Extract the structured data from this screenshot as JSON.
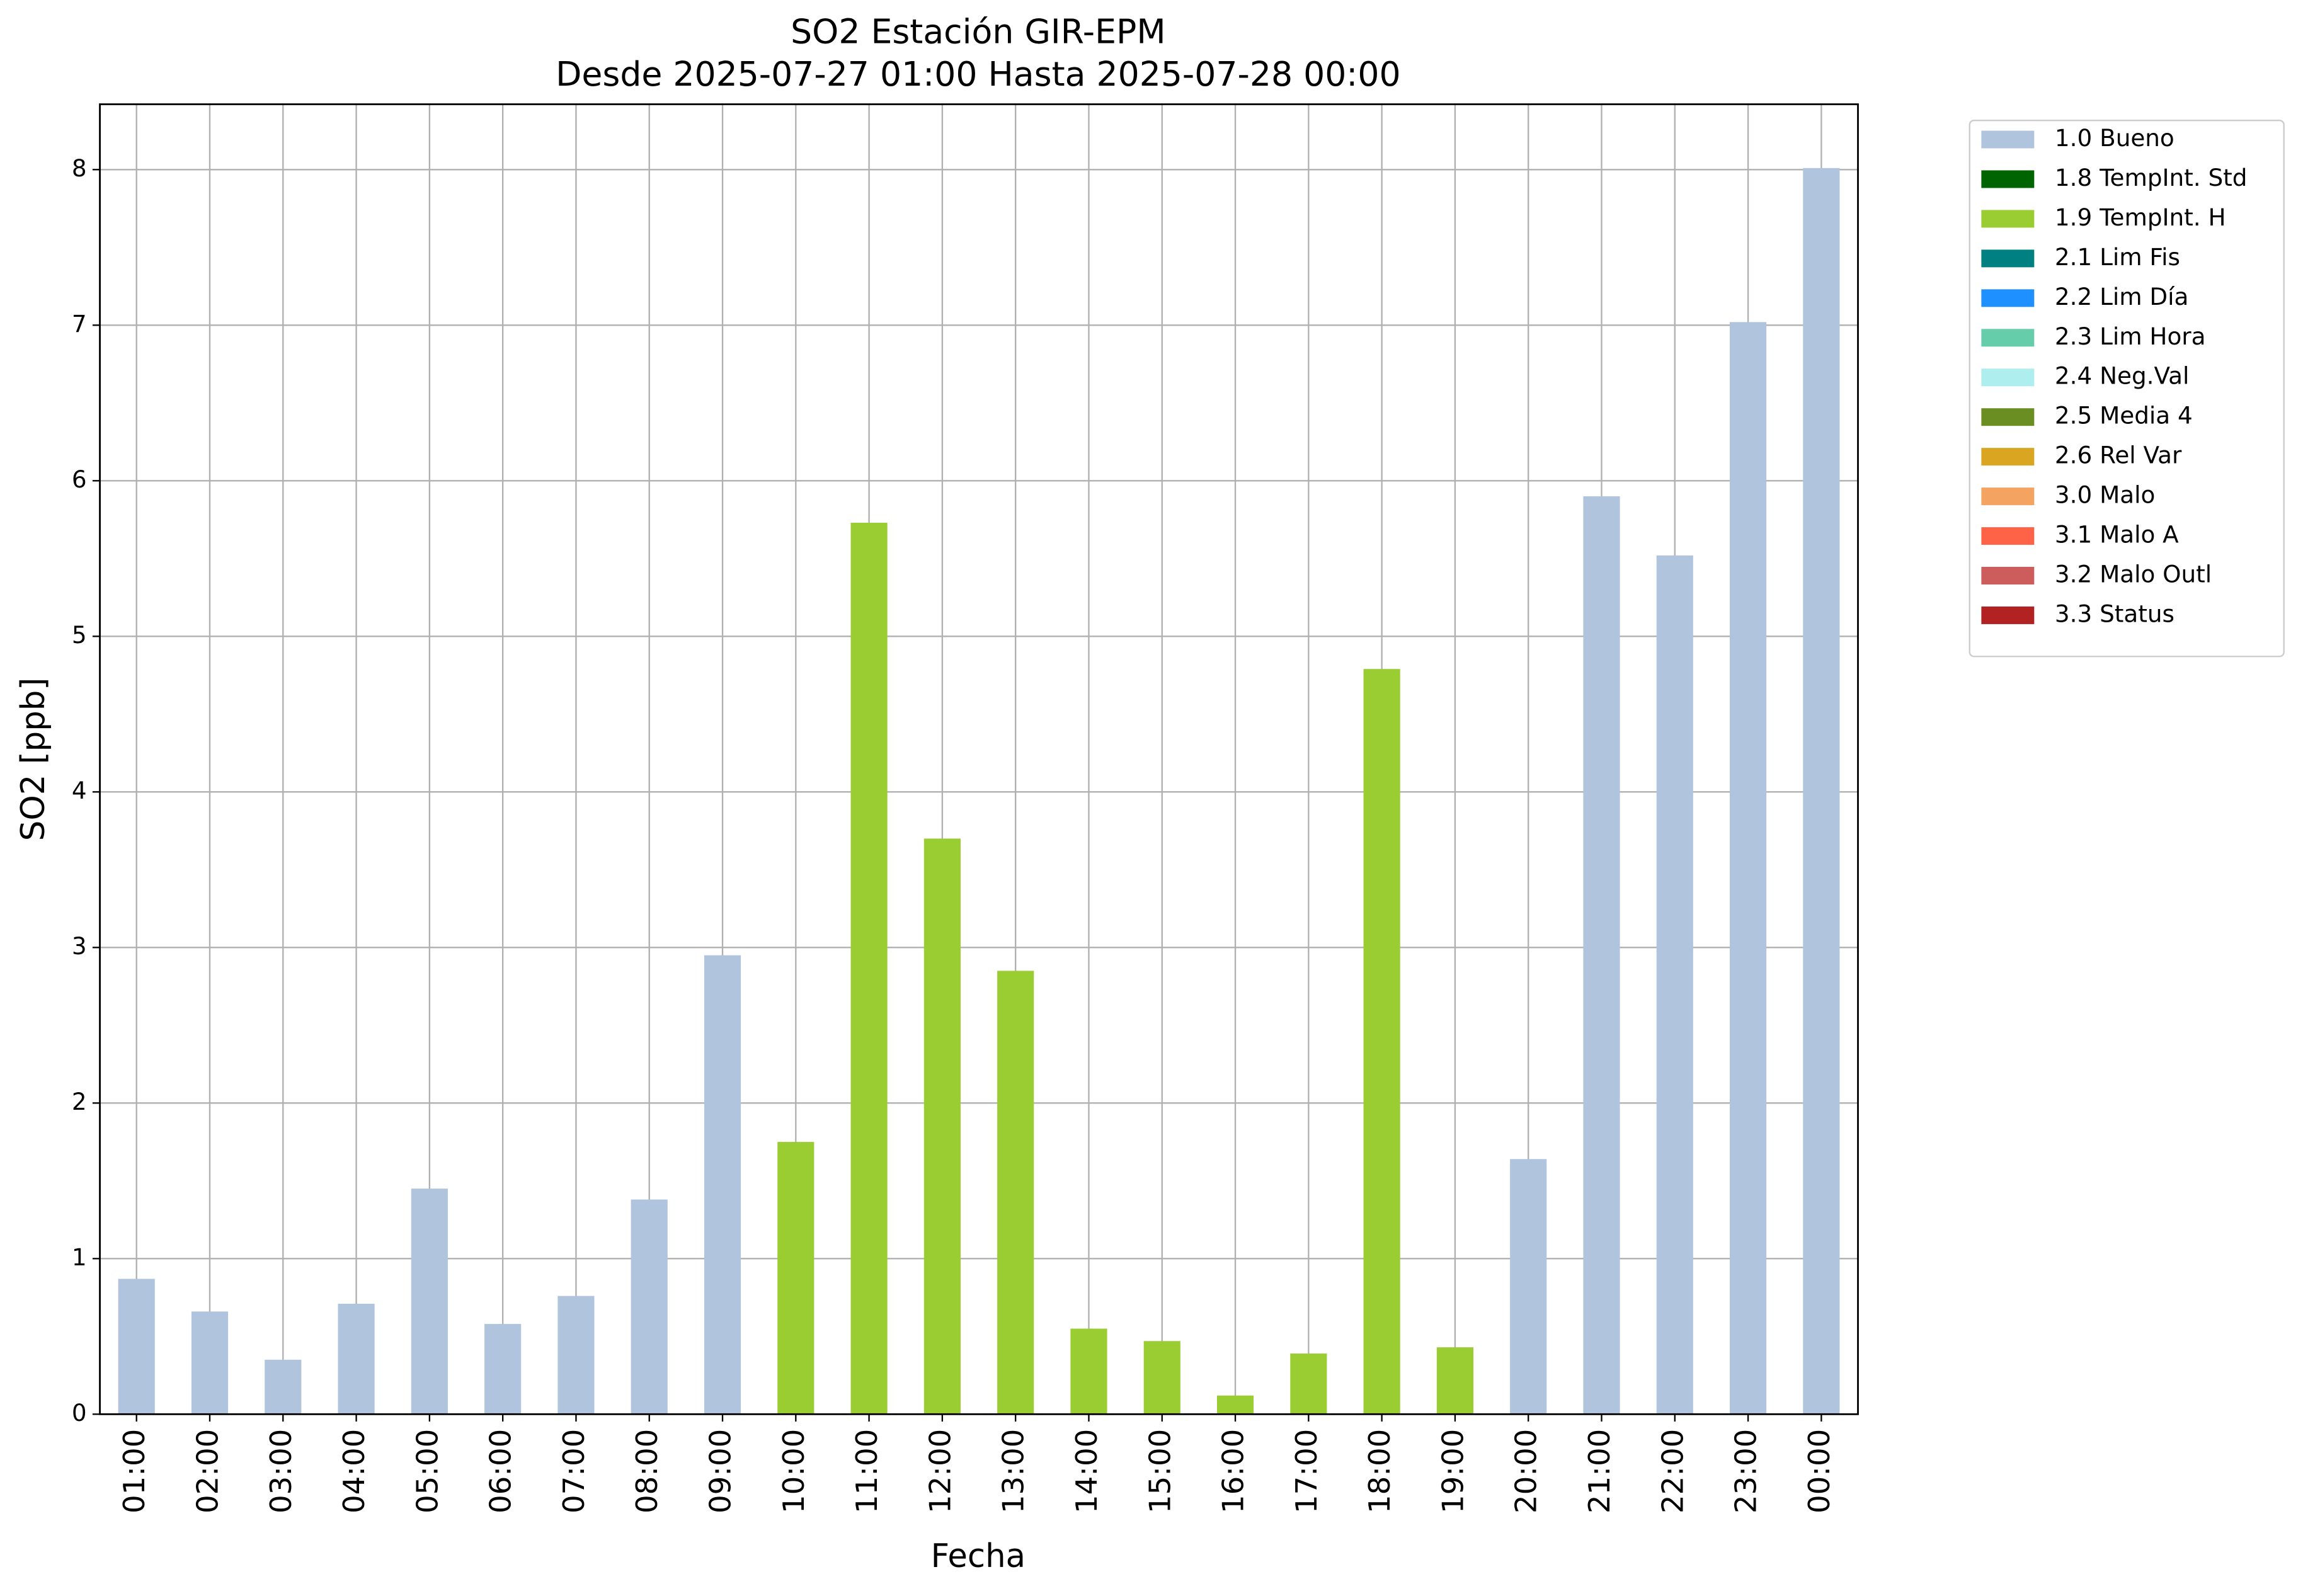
{
  "chart_data": {
    "type": "stacked_bar",
    "title": "SO2 Estación GIR-EPM",
    "subtitle": "Desde 2025-07-27 01:00 Hasta 2025-07-28 00:00",
    "x_label": "Fecha",
    "y_label": "SO2 [ppb]",
    "categories": [
      "01:00",
      "02:00",
      "03:00",
      "04:00",
      "05:00",
      "06:00",
      "07:00",
      "08:00",
      "09:00",
      "10:00",
      "11:00",
      "12:00",
      "13:00",
      "14:00",
      "15:00",
      "16:00",
      "17:00",
      "18:00",
      "19:00",
      "20:00",
      "21:00",
      "22:00",
      "23:00",
      "00:00"
    ],
    "series": [
      {
        "name": "1.0 Bueno",
        "color": "#b0c4de",
        "values": [
          0.87,
          0.66,
          0.35,
          0.71,
          1.45,
          0.58,
          0.76,
          1.38,
          2.95,
          null,
          null,
          null,
          null,
          null,
          null,
          null,
          null,
          null,
          null,
          1.64,
          5.9,
          5.52,
          7.02,
          8.01
        ]
      },
      {
        "name": "1.8 TempInt. Std",
        "color": "#006400",
        "values": [
          null,
          null,
          null,
          null,
          null,
          null,
          null,
          null,
          null,
          null,
          null,
          null,
          null,
          null,
          null,
          null,
          null,
          null,
          null,
          null,
          null,
          null,
          null,
          null
        ]
      },
      {
        "name": "1.9 TempInt. H",
        "color": "#9acd32",
        "values": [
          null,
          null,
          null,
          null,
          null,
          null,
          null,
          null,
          null,
          1.75,
          5.73,
          3.7,
          2.85,
          0.55,
          0.47,
          0.12,
          0.39,
          4.79,
          0.43,
          null,
          null,
          null,
          null,
          null
        ]
      },
      {
        "name": "2.1 Lim Fis",
        "color": "#008080",
        "values": [
          null,
          null,
          null,
          null,
          null,
          null,
          null,
          null,
          null,
          null,
          null,
          null,
          null,
          null,
          null,
          null,
          null,
          null,
          null,
          null,
          null,
          null,
          null,
          null
        ]
      },
      {
        "name": "2.2 Lim Día",
        "color": "#1e90ff",
        "values": [
          null,
          null,
          null,
          null,
          null,
          null,
          null,
          null,
          null,
          null,
          null,
          null,
          null,
          null,
          null,
          null,
          null,
          null,
          null,
          null,
          null,
          null,
          null,
          null
        ]
      },
      {
        "name": "2.3 Lim Hora",
        "color": "#66cdaa",
        "values": [
          null,
          null,
          null,
          null,
          null,
          null,
          null,
          null,
          null,
          null,
          null,
          null,
          null,
          null,
          null,
          null,
          null,
          null,
          null,
          null,
          null,
          null,
          null,
          null
        ]
      },
      {
        "name": "2.4 Neg.Val",
        "color": "#afeeee",
        "values": [
          null,
          null,
          null,
          null,
          null,
          null,
          null,
          null,
          null,
          null,
          null,
          null,
          null,
          null,
          null,
          null,
          null,
          null,
          null,
          null,
          null,
          null,
          null,
          null
        ]
      },
      {
        "name": "2.5 Media 4",
        "color": "#6b8e23",
        "values": [
          null,
          null,
          null,
          null,
          null,
          null,
          null,
          null,
          null,
          null,
          null,
          null,
          null,
          null,
          null,
          null,
          null,
          null,
          null,
          null,
          null,
          null,
          null,
          null
        ]
      },
      {
        "name": "2.6 Rel Var",
        "color": "#daa520",
        "values": [
          null,
          null,
          null,
          null,
          null,
          null,
          null,
          null,
          null,
          null,
          null,
          null,
          null,
          null,
          null,
          null,
          null,
          null,
          null,
          null,
          null,
          null,
          null,
          null
        ]
      },
      {
        "name": "3.0 Malo",
        "color": "#f4a460",
        "values": [
          null,
          null,
          null,
          null,
          null,
          null,
          null,
          null,
          null,
          null,
          null,
          null,
          null,
          null,
          null,
          null,
          null,
          null,
          null,
          null,
          null,
          null,
          null,
          null
        ]
      },
      {
        "name": "3.1 Malo A",
        "color": "#ff6347",
        "values": [
          null,
          null,
          null,
          null,
          null,
          null,
          null,
          null,
          null,
          null,
          null,
          null,
          null,
          null,
          null,
          null,
          null,
          null,
          null,
          null,
          null,
          null,
          null,
          null
        ]
      },
      {
        "name": "3.2 Malo Outl",
        "color": "#cd5c5c",
        "values": [
          null,
          null,
          null,
          null,
          null,
          null,
          null,
          null,
          null,
          null,
          null,
          null,
          null,
          null,
          null,
          null,
          null,
          null,
          null,
          null,
          null,
          null,
          null,
          null
        ]
      },
      {
        "name": "3.3 Status",
        "color": "#b22222",
        "values": [
          null,
          null,
          null,
          null,
          null,
          null,
          null,
          null,
          null,
          null,
          null,
          null,
          null,
          null,
          null,
          null,
          null,
          null,
          null,
          null,
          null,
          null,
          null,
          null
        ]
      }
    ],
    "ylim": [
      0,
      8.42
    ],
    "yticks": [
      0,
      1,
      2,
      3,
      4,
      5,
      6,
      7,
      8
    ],
    "grid": true,
    "legend": "outside upper right"
  }
}
